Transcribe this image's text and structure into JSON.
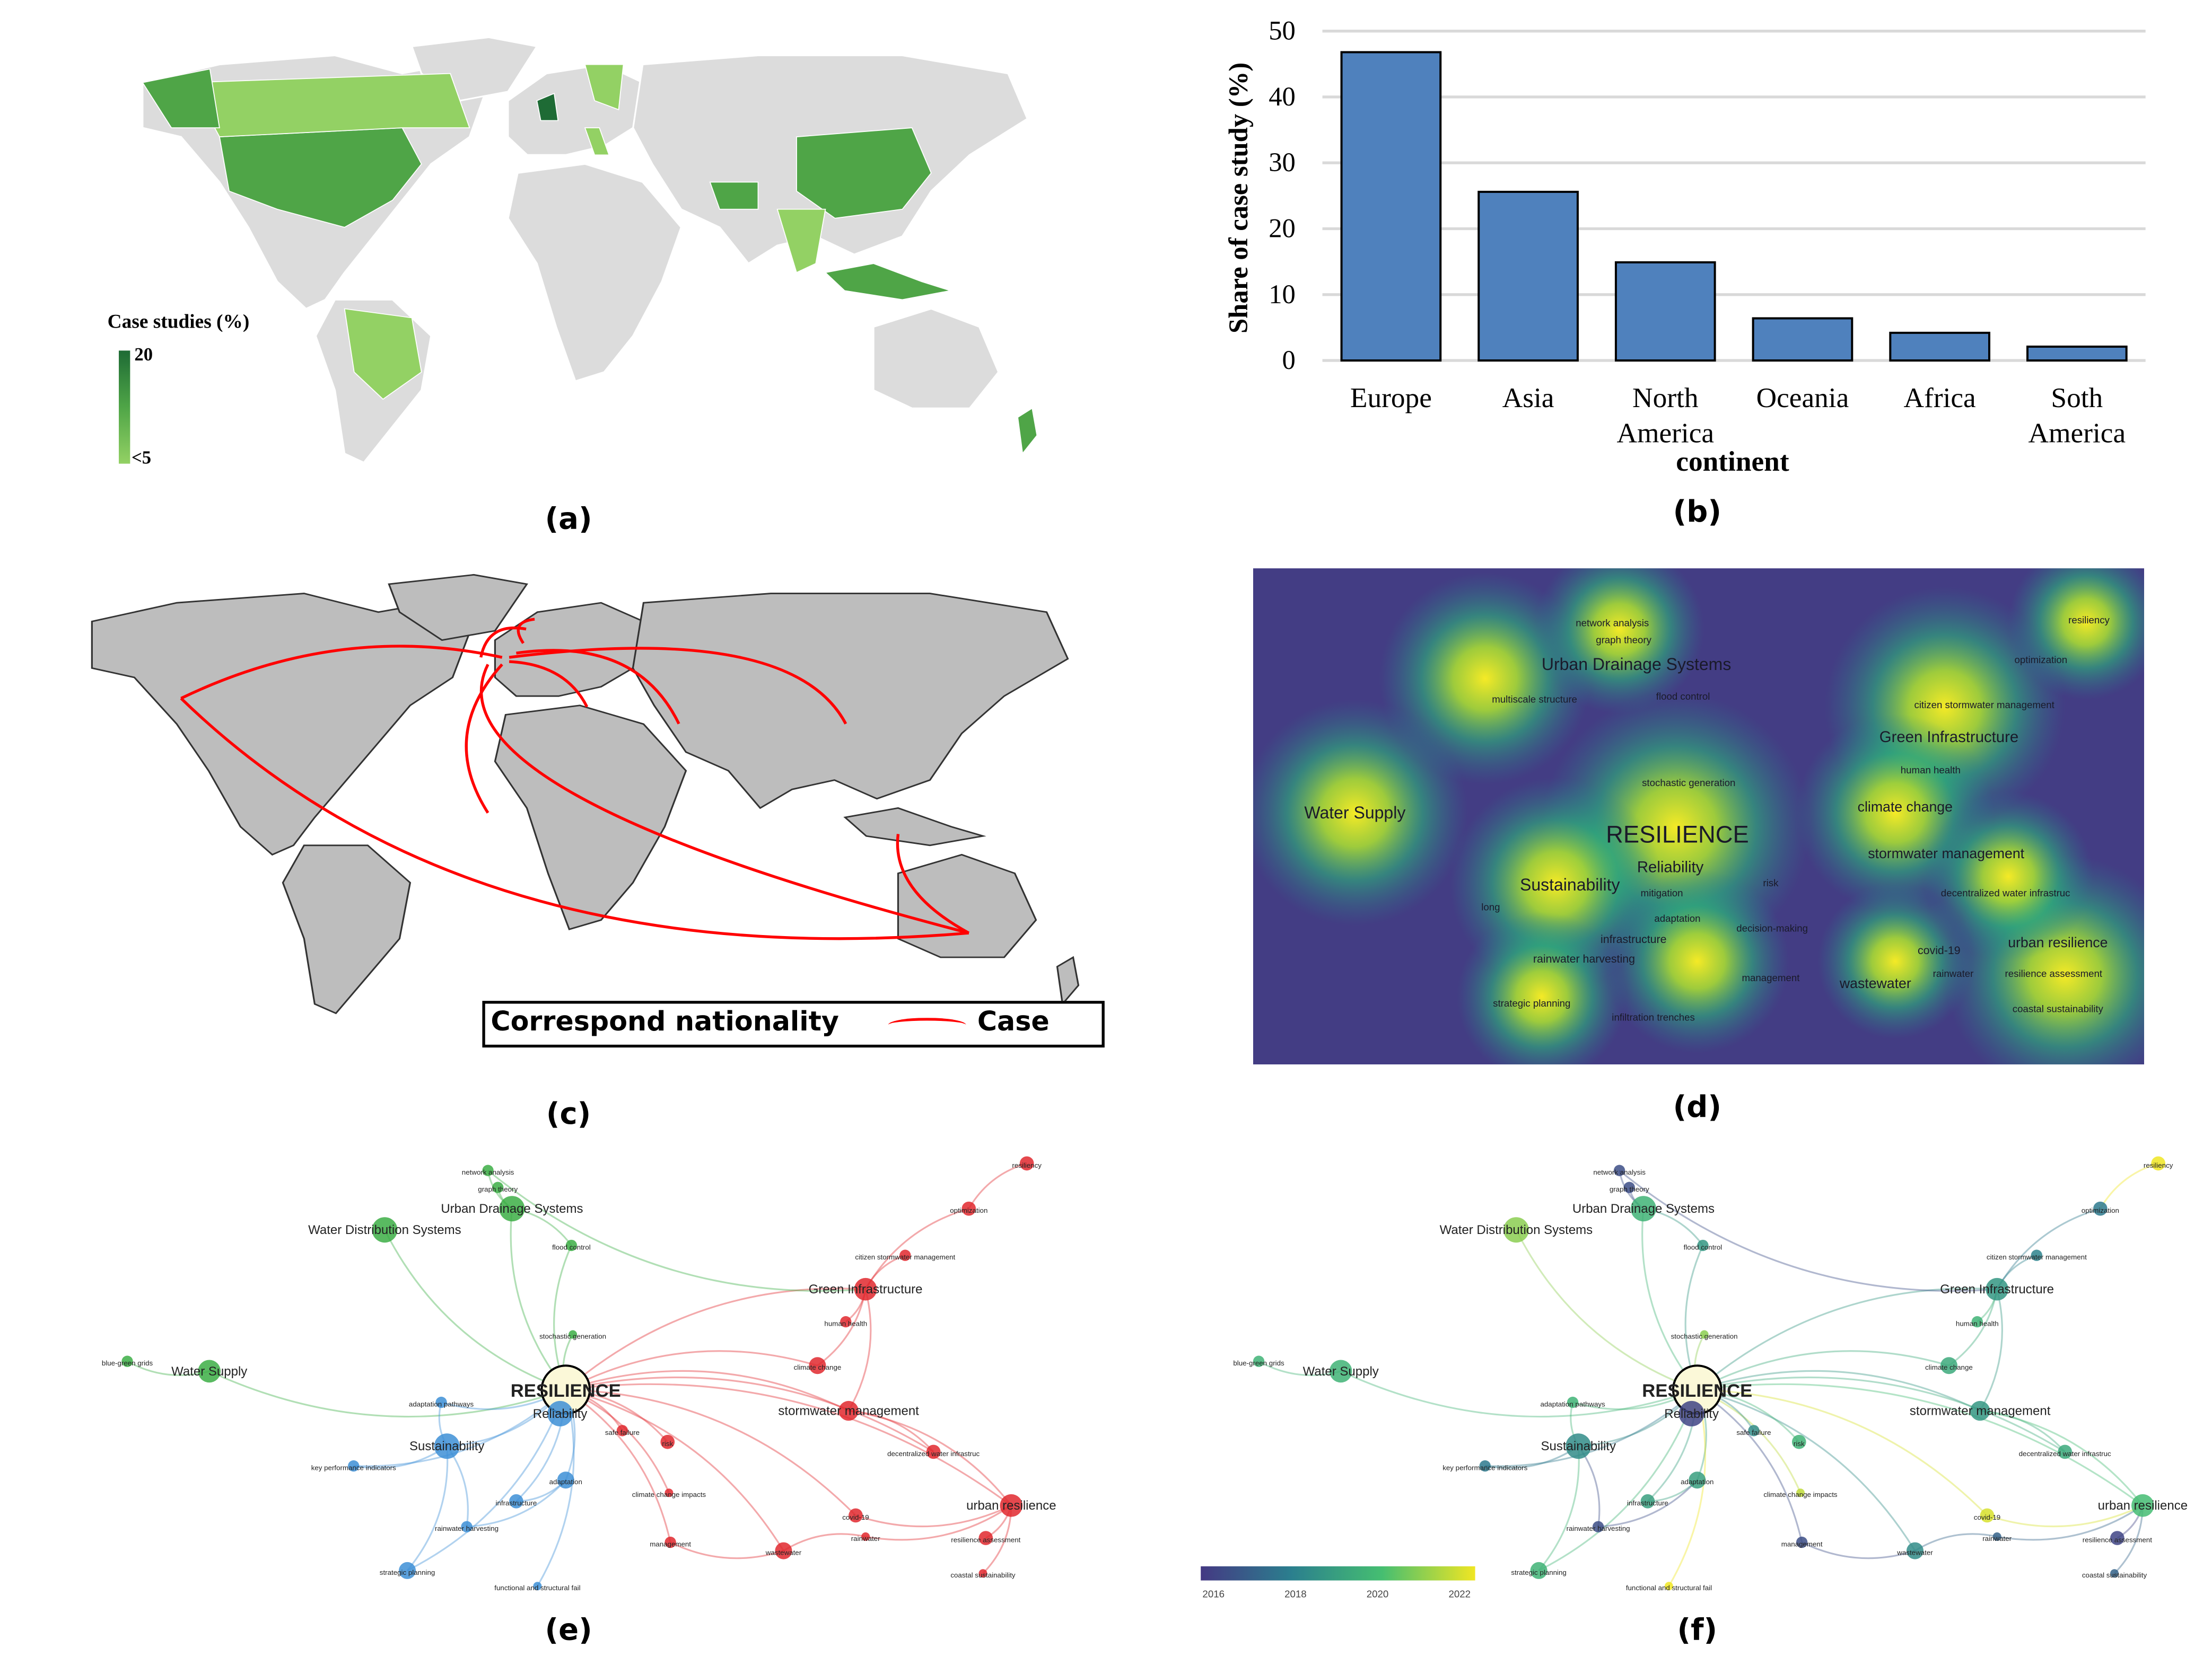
{
  "panel_labels": [
    "(a)",
    "(b)",
    "(c)",
    "(d)",
    "(e)",
    "(f)"
  ],
  "map_a": {
    "legend_title": "Case studies (%)",
    "legend_max": "20",
    "legend_min": "<5",
    "colors": {
      "high": "#1e6b35",
      "mid": "#4fa547",
      "low": "#93d164",
      "none": "#dcdcdc"
    }
  },
  "chart_data": {
    "type": "bar",
    "title": "",
    "categories": [
      "Europe",
      "Asia",
      "North America",
      "Oceania",
      "Africa",
      "Soth America"
    ],
    "category_lines": [
      [
        "Europe"
      ],
      [
        "Asia"
      ],
      [
        "North",
        "America"
      ],
      [
        "Oceania"
      ],
      [
        "Africa"
      ],
      [
        "Soth",
        "America"
      ]
    ],
    "values": [
      46.8,
      25.6,
      14.9,
      6.4,
      4.2,
      2.1
    ],
    "xlabel": "continent",
    "ylabel": "Share of case study (%)",
    "ylim": [
      0,
      50
    ],
    "yticks": [
      "0",
      "10",
      "20",
      "30",
      "40",
      "50"
    ],
    "grid": true,
    "bar_color": "#4f81bd"
  },
  "map_c": {
    "legend_label": "Correspond nationality",
    "legend_case": "Case",
    "line_color": "#ff0000"
  },
  "heatmap_d": {
    "words": [
      "network analysis",
      "graph theory",
      "Urban Drainage Systems",
      "multiscale structure",
      "flood control",
      "resiliency",
      "optimization",
      "citizen stormwater management",
      "Green Infrastructure",
      "human health",
      "stochastic generation",
      "climate change",
      "Water Supply",
      "RESILIENCE",
      "Reliability",
      "stormwater management",
      "Sustainability",
      "mitigation",
      "risk",
      "decentralized water infrastruc",
      "long",
      "adaptation",
      "decision-making",
      "infrastructure",
      "covid-19",
      "urban resilience",
      "rainwater harvesting",
      "management",
      "wastewater",
      "rainwater",
      "resilience assessment",
      "strategic planning",
      "infiltration trenches",
      "coastal sustainability"
    ]
  },
  "network": {
    "labels": [
      "RESILIENCE",
      "Water Supply",
      "blue-green grids",
      "Water Distribution Systems",
      "Urban Drainage Systems",
      "network analysis",
      "graph theory",
      "flood control",
      "stochastic generation",
      "Green Infrastructure",
      "citizen stormwater management",
      "optimization",
      "resiliency",
      "human health",
      "climate change",
      "stormwater management",
      "decentralized water infrastruc",
      "urban resilience",
      "resilience assessment",
      "coastal sustainability",
      "rainwater",
      "wastewater",
      "management",
      "climate change impacts",
      "risk",
      "safe failure",
      "Reliability",
      "Sustainability",
      "adaptation pathways",
      "key performance indicators",
      "adaptation",
      "infrastructure",
      "rainwater harvesting",
      "strategic planning",
      "functional and structural fail",
      "covid-19"
    ],
    "cluster_colors": {
      "green": "#3cae45",
      "blue": "#3d8fd6",
      "red": "#e0282e",
      "center": "#fbf8d8"
    },
    "colorbar_ticks": [
      "2016",
      "2018",
      "2020",
      "2022"
    ]
  }
}
